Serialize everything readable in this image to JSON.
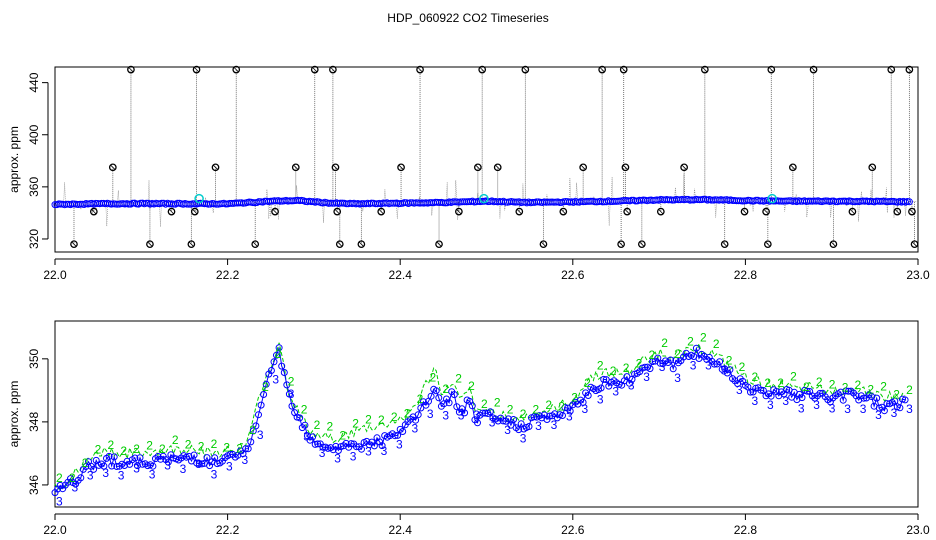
{
  "title": "HDP_060922  CO2 Timeseries",
  "colors": {
    "main_line": "#0000ff",
    "main_point": "#0000ff",
    "raw_line": "#808080",
    "spike_point": "#000000",
    "highlight_point": "#00cccc",
    "secondary_line": "#00cc00"
  },
  "chart_data": [
    {
      "type": "scatter",
      "title": "",
      "ylabel": "approx. ppm",
      "xlim": [
        22.0,
        23.0
      ],
      "ylim": [
        310,
        452
      ],
      "xticks": [
        "22.0",
        "22.2",
        "22.4",
        "22.6",
        "22.8",
        "23.0"
      ],
      "yticks": [
        "320",
        "360",
        "400",
        "440"
      ],
      "baseline": [
        [
          22.0,
          346.5
        ],
        [
          22.05,
          347
        ],
        [
          22.1,
          347.2
        ],
        [
          22.15,
          347
        ],
        [
          22.2,
          347
        ],
        [
          22.25,
          349
        ],
        [
          22.28,
          349.5
        ],
        [
          22.32,
          347.5
        ],
        [
          22.35,
          347
        ],
        [
          22.4,
          347.5
        ],
        [
          22.45,
          348
        ],
        [
          22.5,
          349
        ],
        [
          22.55,
          348
        ],
        [
          22.6,
          348.5
        ],
        [
          22.65,
          349
        ],
        [
          22.7,
          350
        ],
        [
          22.75,
          350.2
        ],
        [
          22.8,
          349.5
        ],
        [
          22.85,
          349
        ],
        [
          22.9,
          349
        ],
        [
          22.95,
          348.8
        ],
        [
          22.99,
          348.5
        ]
      ],
      "spikes": [
        [
          22.022,
          316
        ],
        [
          22.045,
          341
        ],
        [
          22.067,
          375
        ],
        [
          22.088,
          450
        ],
        [
          22.11,
          316
        ],
        [
          22.135,
          341
        ],
        [
          22.158,
          316
        ],
        [
          22.162,
          341
        ],
        [
          22.164,
          450
        ],
        [
          22.186,
          375
        ],
        [
          22.21,
          450
        ],
        [
          22.232,
          316
        ],
        [
          22.255,
          341
        ],
        [
          22.279,
          375
        ],
        [
          22.301,
          450
        ],
        [
          22.322,
          450
        ],
        [
          22.325,
          375
        ],
        [
          22.327,
          341
        ],
        [
          22.33,
          316
        ],
        [
          22.355,
          316
        ],
        [
          22.378,
          341
        ],
        [
          22.401,
          375
        ],
        [
          22.423,
          450
        ],
        [
          22.445,
          316
        ],
        [
          22.468,
          341
        ],
        [
          22.49,
          375
        ],
        [
          22.495,
          450
        ],
        [
          22.513,
          375
        ],
        [
          22.538,
          341
        ],
        [
          22.545,
          450
        ],
        [
          22.566,
          316
        ],
        [
          22.589,
          341
        ],
        [
          22.612,
          375
        ],
        [
          22.634,
          450
        ],
        [
          22.656,
          316
        ],
        [
          22.659,
          450
        ],
        [
          22.661,
          375
        ],
        [
          22.663,
          341
        ],
        [
          22.68,
          316
        ],
        [
          22.702,
          341
        ],
        [
          22.729,
          375
        ],
        [
          22.753,
          450
        ],
        [
          22.776,
          316
        ],
        [
          22.799,
          341
        ],
        [
          22.824,
          341
        ],
        [
          22.826,
          316
        ],
        [
          22.83,
          450
        ],
        [
          22.855,
          375
        ],
        [
          22.879,
          450
        ],
        [
          22.902,
          316
        ],
        [
          22.924,
          341
        ],
        [
          22.947,
          375
        ],
        [
          22.969,
          450
        ],
        [
          22.976,
          341
        ],
        [
          22.99,
          450
        ],
        [
          22.993,
          341
        ],
        [
          22.996,
          316
        ]
      ],
      "highlights": [
        [
          22.167,
          351
        ],
        [
          22.497,
          351
        ],
        [
          22.831,
          351
        ]
      ]
    },
    {
      "type": "line",
      "title": "",
      "ylabel": "approx. ppm",
      "xlim": [
        22.0,
        23.0
      ],
      "ylim": [
        345.3,
        351.2
      ],
      "xticks": [
        "22.0",
        "22.2",
        "22.4",
        "22.6",
        "22.8",
        "23.0"
      ],
      "yticks": [
        "346",
        "348",
        "350"
      ],
      "series": [
        {
          "marker": "3",
          "points": [
            [
              22.0,
              345.9
            ],
            [
              22.01,
              345.8
            ],
            [
              22.02,
              346.1
            ],
            [
              22.03,
              346.3
            ],
            [
              22.04,
              346.6
            ],
            [
              22.05,
              346.7
            ],
            [
              22.06,
              346.8
            ],
            [
              22.08,
              346.7
            ],
            [
              22.1,
              346.7
            ],
            [
              22.12,
              346.8
            ],
            [
              22.14,
              346.8
            ],
            [
              22.16,
              346.9
            ],
            [
              22.18,
              346.7
            ],
            [
              22.2,
              346.8
            ],
            [
              22.22,
              347.0
            ],
            [
              22.23,
              347.6
            ],
            [
              22.24,
              348.8
            ],
            [
              22.25,
              349.5
            ],
            [
              22.26,
              350.3
            ],
            [
              22.27,
              348.9
            ],
            [
              22.28,
              348.3
            ],
            [
              22.29,
              347.8
            ],
            [
              22.3,
              347.4
            ],
            [
              22.31,
              347.3
            ],
            [
              22.32,
              347.2
            ],
            [
              22.34,
              347.2
            ],
            [
              22.36,
              347.3
            ],
            [
              22.38,
              347.4
            ],
            [
              22.4,
              347.6
            ],
            [
              22.41,
              348.0
            ],
            [
              22.42,
              348.2
            ],
            [
              22.43,
              348.6
            ],
            [
              22.44,
              349.1
            ],
            [
              22.45,
              348.4
            ],
            [
              22.46,
              348.9
            ],
            [
              22.47,
              348.3
            ],
            [
              22.48,
              348.6
            ],
            [
              22.49,
              348.0
            ],
            [
              22.5,
              348.2
            ],
            [
              22.52,
              348.0
            ],
            [
              22.54,
              347.9
            ],
            [
              22.56,
              348.1
            ],
            [
              22.58,
              348.2
            ],
            [
              22.6,
              348.4
            ],
            [
              22.62,
              349.0
            ],
            [
              22.64,
              349.3
            ],
            [
              22.66,
              349.2
            ],
            [
              22.68,
              349.7
            ],
            [
              22.7,
              350.0
            ],
            [
              22.72,
              349.8
            ],
            [
              22.74,
              350.2
            ],
            [
              22.76,
              350.0
            ],
            [
              22.78,
              349.6
            ],
            [
              22.8,
              349.2
            ],
            [
              22.82,
              348.9
            ],
            [
              22.84,
              349.0
            ],
            [
              22.86,
              348.8
            ],
            [
              22.88,
              348.9
            ],
            [
              22.9,
              348.7
            ],
            [
              22.92,
              348.9
            ],
            [
              22.94,
              348.8
            ],
            [
              22.96,
              348.5
            ],
            [
              22.98,
              348.6
            ],
            [
              22.99,
              348.8
            ]
          ]
        },
        {
          "marker": "2",
          "points": [
            [
              22.0,
              346.0
            ],
            [
              22.01,
              346.0
            ],
            [
              22.02,
              346.3
            ],
            [
              22.03,
              346.5
            ],
            [
              22.04,
              346.9
            ],
            [
              22.05,
              347.0
            ],
            [
              22.06,
              347.1
            ],
            [
              22.08,
              347.0
            ],
            [
              22.1,
              347.0
            ],
            [
              22.12,
              347.1
            ],
            [
              22.14,
              347.1
            ],
            [
              22.16,
              347.2
            ],
            [
              22.18,
              347.0
            ],
            [
              22.2,
              347.1
            ],
            [
              22.22,
              347.2
            ],
            [
              22.23,
              348.0
            ],
            [
              22.24,
              349.2
            ],
            [
              22.25,
              349.7
            ],
            [
              22.26,
              350.6
            ],
            [
              22.27,
              349.0
            ],
            [
              22.28,
              348.4
            ],
            [
              22.29,
              347.9
            ],
            [
              22.3,
              347.6
            ],
            [
              22.31,
              347.5
            ],
            [
              22.32,
              347.5
            ],
            [
              22.34,
              347.6
            ],
            [
              22.36,
              347.8
            ],
            [
              22.38,
              347.9
            ],
            [
              22.4,
              348.1
            ],
            [
              22.41,
              348.3
            ],
            [
              22.42,
              348.6
            ],
            [
              22.43,
              349.2
            ],
            [
              22.44,
              349.7
            ],
            [
              22.45,
              348.8
            ],
            [
              22.46,
              349.3
            ],
            [
              22.47,
              348.6
            ],
            [
              22.48,
              349.0
            ],
            [
              22.49,
              348.2
            ],
            [
              22.5,
              348.4
            ],
            [
              22.52,
              348.2
            ],
            [
              22.54,
              348.1
            ],
            [
              22.56,
              348.3
            ],
            [
              22.58,
              348.4
            ],
            [
              22.6,
              348.7
            ],
            [
              22.62,
              349.4
            ],
            [
              22.64,
              349.6
            ],
            [
              22.66,
              349.5
            ],
            [
              22.68,
              349.9
            ],
            [
              22.7,
              350.2
            ],
            [
              22.72,
              350.1
            ],
            [
              22.74,
              350.4
            ],
            [
              22.76,
              350.2
            ],
            [
              22.78,
              349.8
            ],
            [
              22.8,
              349.4
            ],
            [
              22.82,
              349.2
            ],
            [
              22.84,
              349.2
            ],
            [
              22.86,
              349.0
            ],
            [
              22.88,
              349.1
            ],
            [
              22.9,
              348.9
            ],
            [
              22.92,
              349.1
            ],
            [
              22.94,
              349.0
            ],
            [
              22.96,
              348.8
            ],
            [
              22.98,
              348.8
            ],
            [
              22.99,
              348.7
            ]
          ]
        }
      ]
    }
  ]
}
